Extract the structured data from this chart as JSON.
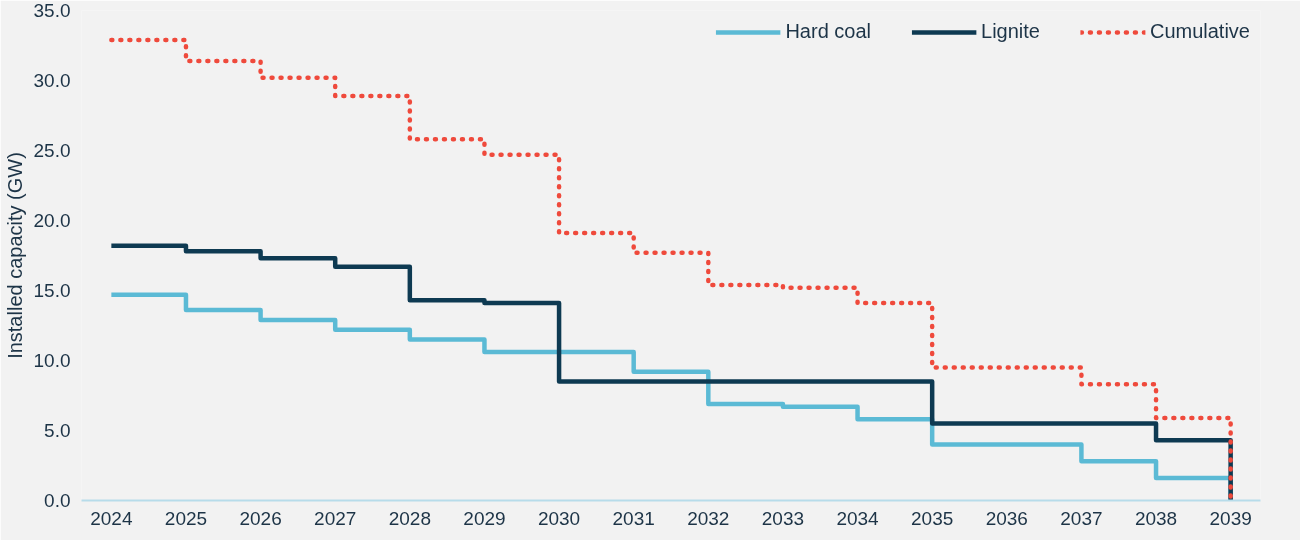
{
  "chart_data": {
    "type": "step",
    "ylabel": "Installed capacity (GW)",
    "x": [
      2024,
      2025,
      2026,
      2027,
      2028,
      2029,
      2030,
      2031,
      2032,
      2033,
      2034,
      2035,
      2036,
      2037,
      2038,
      2039
    ],
    "series": [
      {
        "name": "Hard coal",
        "color": "#5bbad5",
        "line_style": "solid",
        "values": [
          14.7,
          13.6,
          12.9,
          12.2,
          11.5,
          10.6,
          10.6,
          9.2,
          6.9,
          6.7,
          5.8,
          4.0,
          4.0,
          2.8,
          1.6,
          0
        ]
      },
      {
        "name": "Lignite",
        "color": "#0e3a52",
        "line_style": "solid",
        "values": [
          18.2,
          17.8,
          17.3,
          16.7,
          14.3,
          14.1,
          8.5,
          8.5,
          8.5,
          8.5,
          8.5,
          5.5,
          5.5,
          5.5,
          4.3,
          0
        ]
      },
      {
        "name": "Cumulative",
        "color": "#ef4a3c",
        "line_style": "dotted",
        "values": [
          32.9,
          31.4,
          30.2,
          28.9,
          25.8,
          24.7,
          19.1,
          17.7,
          15.4,
          15.2,
          14.1,
          9.5,
          9.5,
          8.3,
          5.9,
          0
        ]
      }
    ],
    "xlim": [
      2023.6,
      2039.4
    ],
    "ylim": [
      0,
      35
    ],
    "xticks": [
      2024,
      2025,
      2026,
      2027,
      2028,
      2029,
      2030,
      2031,
      2032,
      2033,
      2034,
      2035,
      2036,
      2037,
      2038,
      2039
    ],
    "yticks": [
      {
        "value": 0,
        "label": "0.0"
      },
      {
        "value": 5,
        "label": "5.0"
      },
      {
        "value": 10,
        "label": "10.0"
      },
      {
        "value": 15,
        "label": "15.0"
      },
      {
        "value": 20,
        "label": "20.0"
      },
      {
        "value": 25,
        "label": "25.0"
      },
      {
        "value": 30,
        "label": "30.0"
      },
      {
        "value": 35,
        "label": "35.0"
      }
    ],
    "legend": "top right",
    "grid": false
  }
}
